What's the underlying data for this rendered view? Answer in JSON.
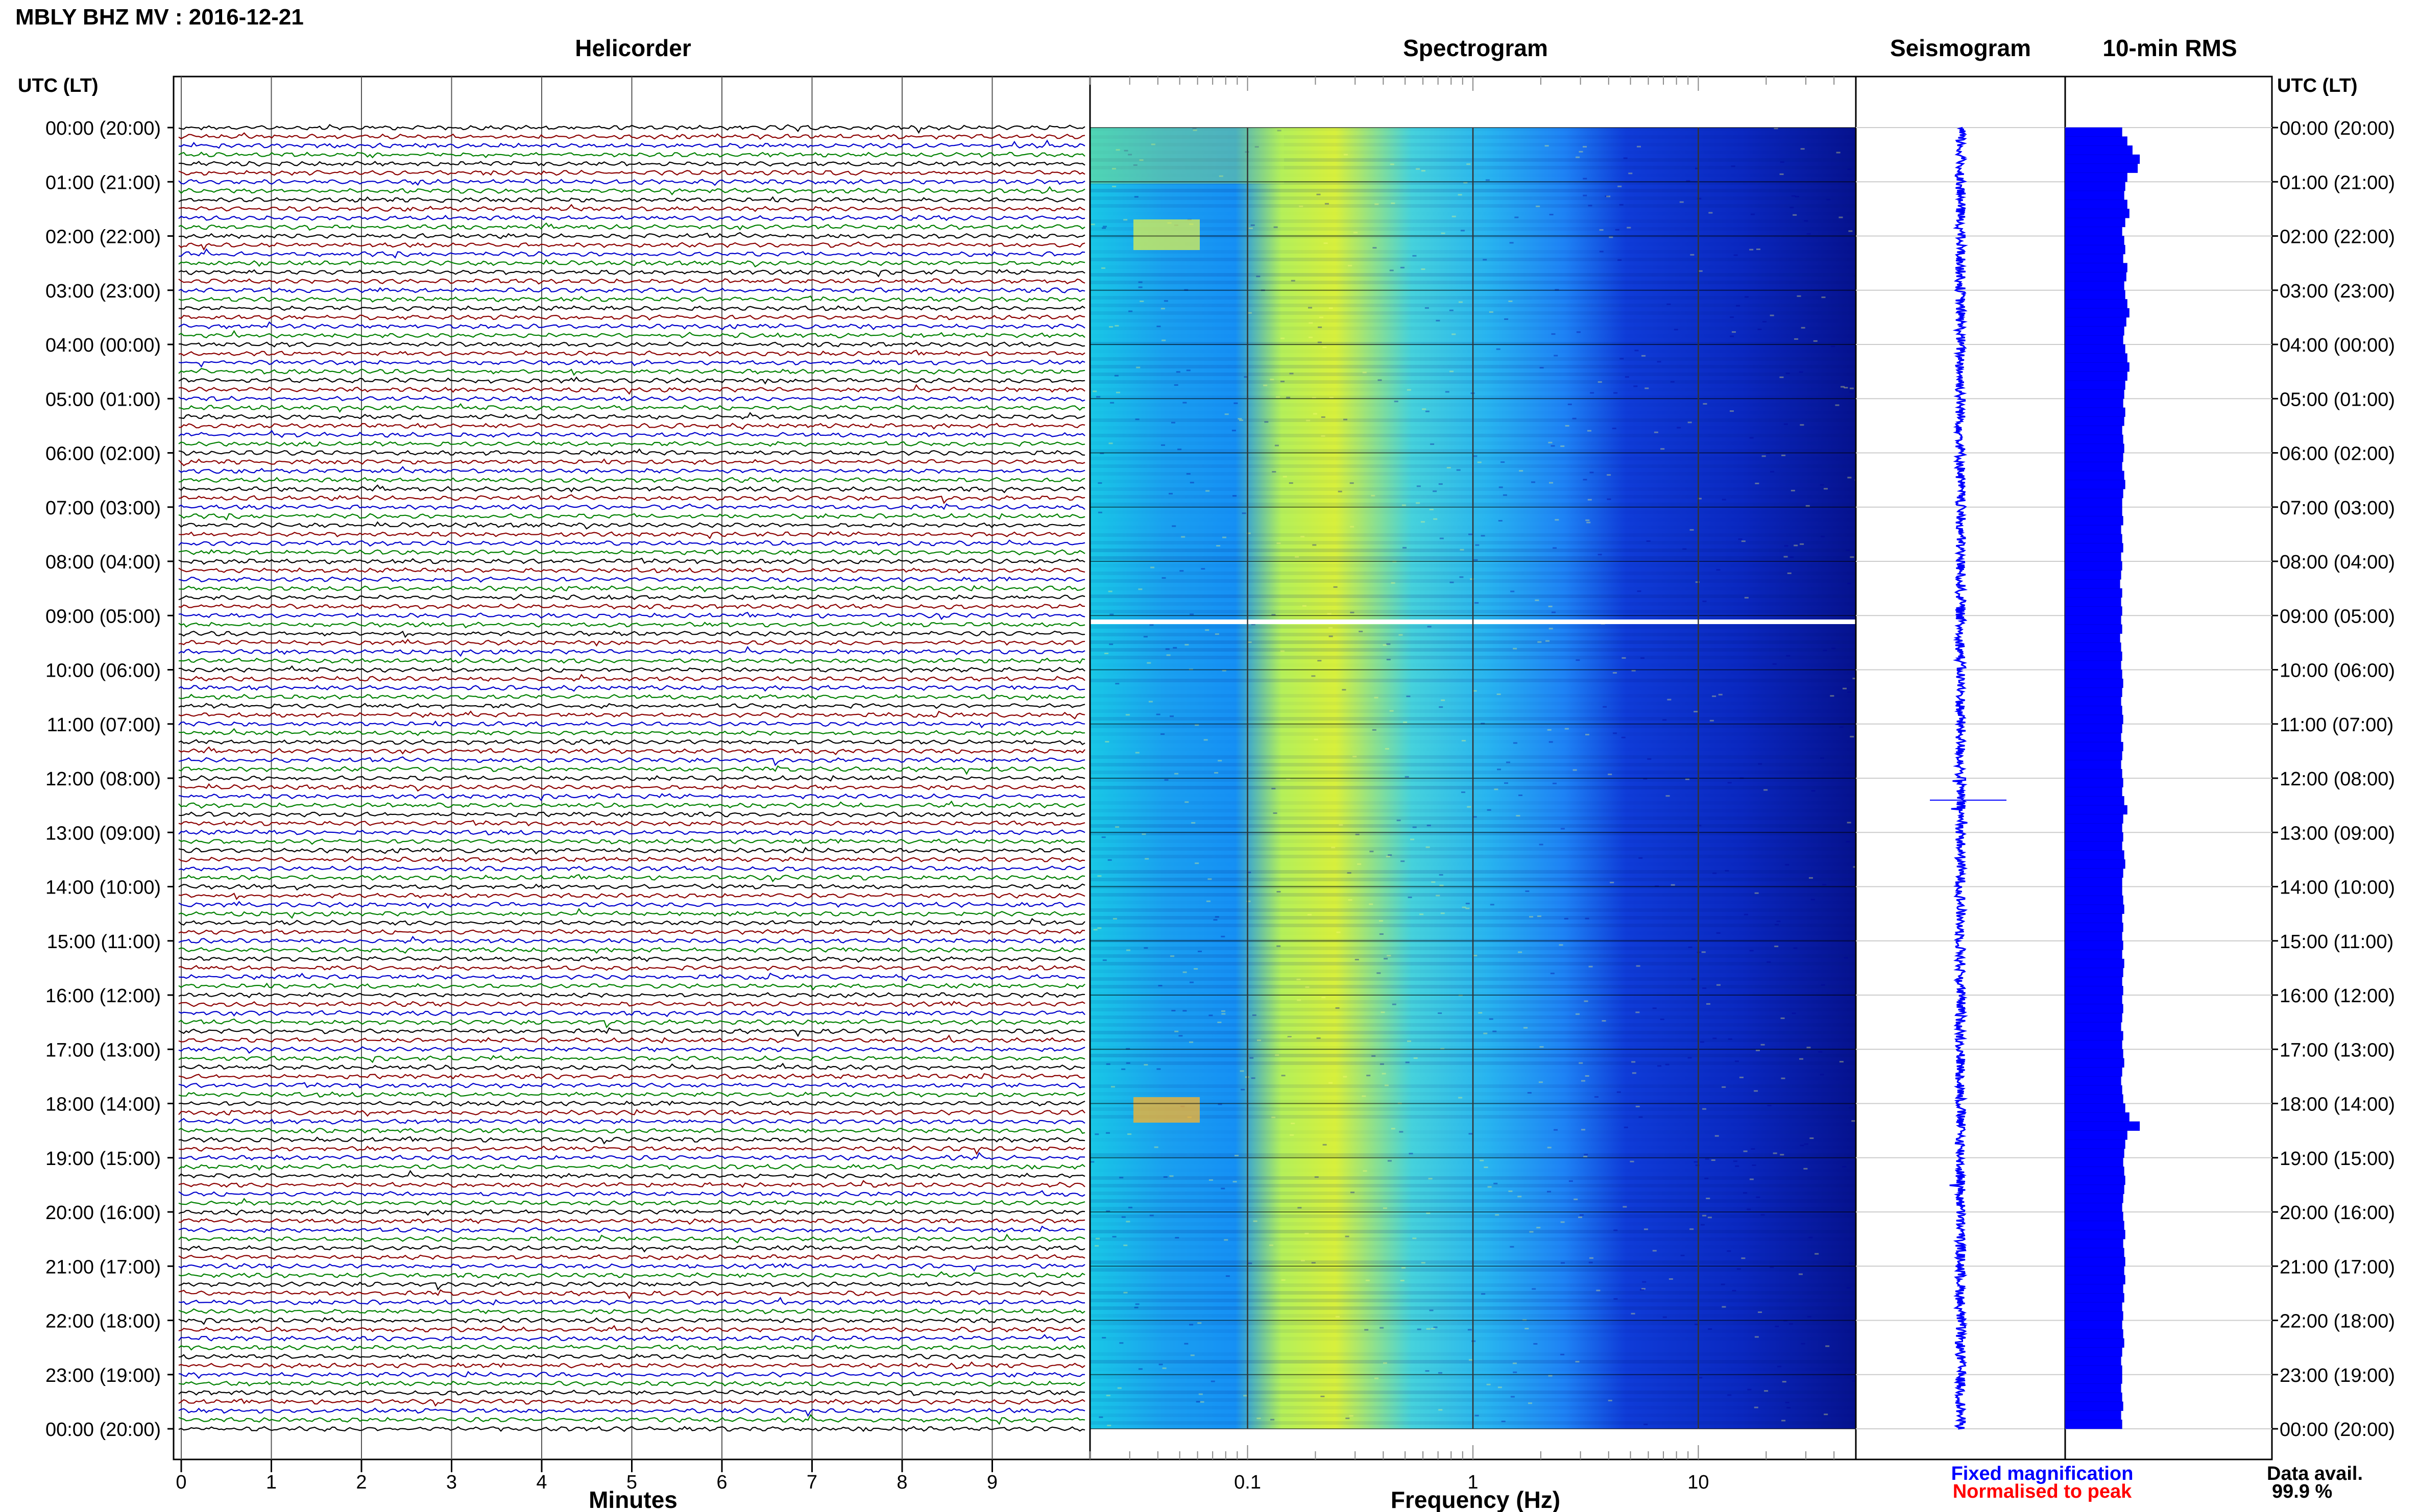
{
  "header": {
    "title": "MBLY BHZ MV : 2016-12-21",
    "utc_label_left": "UTC (LT)",
    "utc_label_right": "UTC (LT)"
  },
  "panels": {
    "helicorder": "Helicorder",
    "spectrogram": "Spectrogram",
    "seismogram": "Seismogram",
    "rms": "10-min RMS"
  },
  "axes": {
    "minutes_label": "Minutes",
    "frequency_label": "Frequency (Hz)",
    "minute_ticks": [
      "0",
      "1",
      "2",
      "3",
      "4",
      "5",
      "6",
      "7",
      "8",
      "9"
    ],
    "frequency_ticks": [
      "0.1",
      "1",
      "10"
    ]
  },
  "time_labels": [
    "00:00 (20:00)",
    "01:00 (21:00)",
    "02:00 (22:00)",
    "03:00 (23:00)",
    "04:00 (00:00)",
    "05:00 (01:00)",
    "06:00 (02:00)",
    "07:00 (03:00)",
    "08:00 (04:00)",
    "09:00 (05:00)",
    "10:00 (06:00)",
    "11:00 (07:00)",
    "12:00 (08:00)",
    "13:00 (09:00)",
    "14:00 (10:00)",
    "15:00 (11:00)",
    "16:00 (12:00)",
    "17:00 (13:00)",
    "18:00 (14:00)",
    "19:00 (15:00)",
    "20:00 (16:00)",
    "21:00 (17:00)",
    "22:00 (18:00)",
    "23:00 (19:00)",
    "00:00 (20:00)"
  ],
  "footer": {
    "fixed_magnification": "Fixed magnification",
    "normalised_to_peak": "Normalised to peak",
    "data_avail_label": "Data avail.",
    "data_avail_value": "99.9 %"
  },
  "colors": {
    "trace_colors": [
      "#000000",
      "#8b0000",
      "#0000cc",
      "#008000"
    ],
    "rms_bar": "#0000ff",
    "fixed_magnification": "#0000ff",
    "normalised_to_peak": "#ff0000"
  },
  "chart_data": [
    {
      "type": "line",
      "title": "Helicorder",
      "xlabel": "Minutes",
      "xlim": [
        0,
        10
      ],
      "rows_per_hour": 6,
      "hours": 24,
      "series_colors_cycle": [
        "black",
        "darkred",
        "blue",
        "green"
      ]
    },
    {
      "type": "heatmap",
      "title": "Spectrogram",
      "xlabel": "Frequency (Hz)",
      "xscale": "log",
      "xlim": [
        0.02,
        50
      ],
      "colormap": "jet",
      "gap_at": "09:00"
    },
    {
      "type": "line",
      "title": "Seismogram",
      "xlabel": "",
      "hours": 24
    },
    {
      "type": "bar",
      "title": "10-min RMS",
      "orientation": "horizontal",
      "interval_minutes": 10,
      "relative_values": [
        0.55,
        0.6,
        0.65,
        0.72,
        0.7,
        0.6,
        0.58,
        0.57,
        0.6,
        0.62,
        0.58,
        0.55,
        0.57,
        0.58,
        0.56,
        0.6,
        0.59,
        0.57,
        0.58,
        0.6,
        0.62,
        0.59,
        0.57,
        0.56,
        0.58,
        0.6,
        0.62,
        0.6,
        0.58,
        0.57,
        0.56,
        0.58,
        0.57,
        0.55,
        0.56,
        0.57,
        0.56,
        0.55,
        0.57,
        0.58,
        0.56,
        0.55,
        0.55,
        0.56,
        0.54,
        0.55,
        0.56,
        0.54,
        0.55,
        0.54,
        0.53,
        0.55,
        0.54,
        0.55,
        0.54,
        0.55,
        0.53,
        0.54,
        0.55,
        0.54,
        0.55,
        0.56,
        0.55,
        0.54,
        0.55,
        0.56,
        0.55,
        0.54,
        0.56,
        0.55,
        0.54,
        0.55,
        0.56,
        0.55,
        0.57,
        0.6,
        0.56,
        0.55,
        0.56,
        0.55,
        0.57,
        0.58,
        0.56,
        0.55,
        0.55,
        0.56,
        0.57,
        0.55,
        0.56,
        0.55,
        0.56,
        0.55,
        0.57,
        0.56,
        0.55,
        0.56,
        0.55,
        0.56,
        0.55,
        0.54,
        0.56,
        0.55,
        0.56,
        0.57,
        0.55,
        0.54,
        0.55,
        0.56,
        0.58,
        0.62,
        0.72,
        0.6,
        0.58,
        0.57,
        0.56,
        0.57,
        0.58,
        0.57,
        0.56,
        0.55,
        0.56,
        0.57,
        0.58,
        0.56,
        0.57,
        0.58,
        0.57,
        0.58,
        0.56,
        0.57,
        0.55,
        0.56,
        0.55,
        0.56,
        0.57,
        0.55,
        0.54,
        0.55,
        0.55,
        0.54,
        0.55,
        0.56,
        0.54,
        0.55
      ]
    }
  ]
}
